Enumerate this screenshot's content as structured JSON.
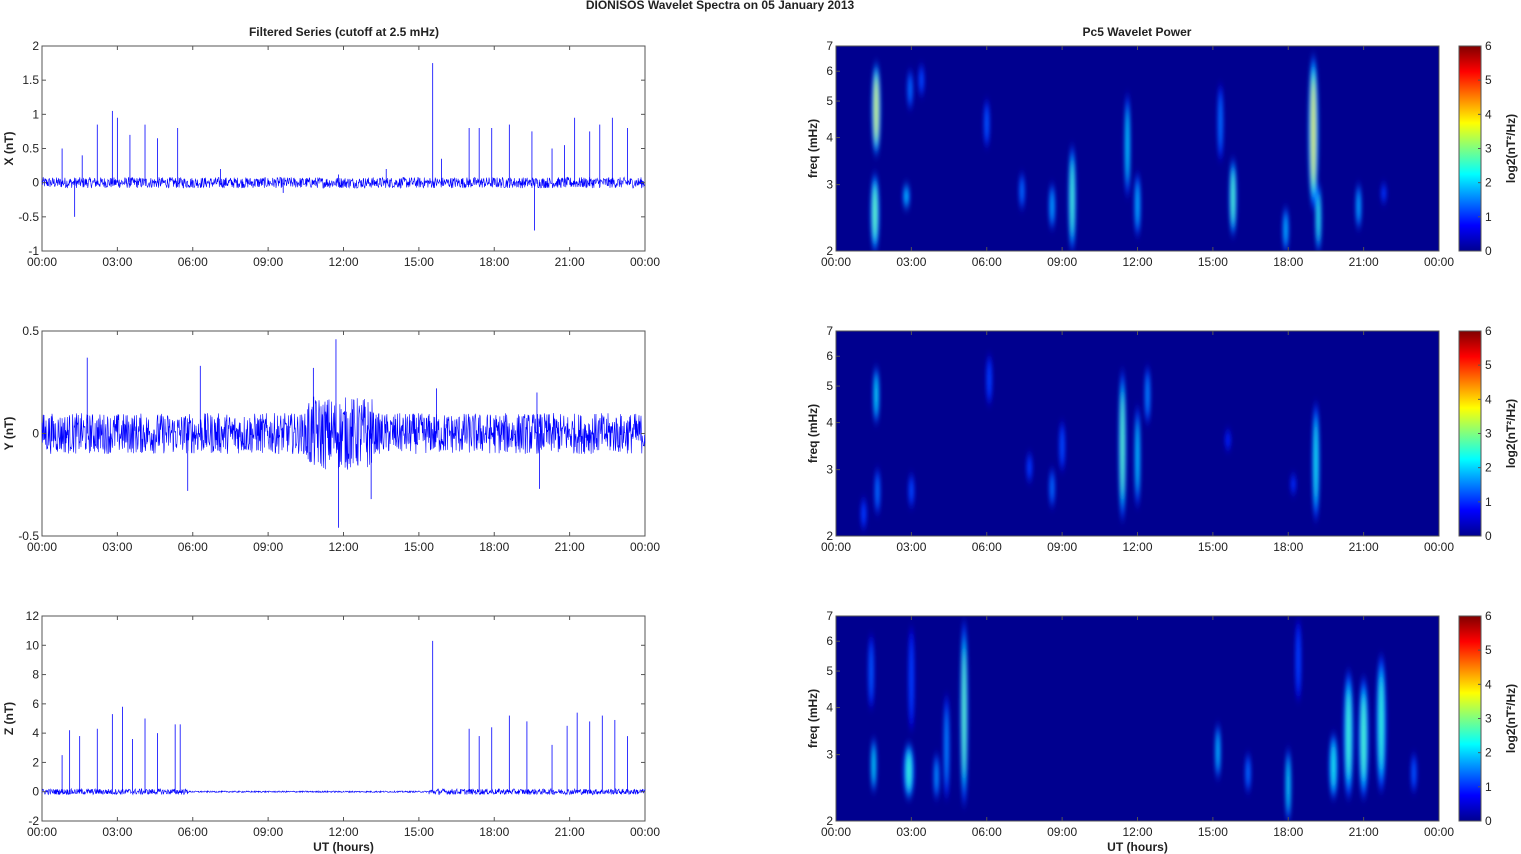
{
  "figure": {
    "title": "DIONISOS Wavelet Spectra on 05 January   2013",
    "left_title": "Filtered Series (cutoff at 2.5 mHz)",
    "right_title": "Pc5 Wavelet Power"
  },
  "colors": {
    "line": "#0000ff",
    "spectrum_background": "#00008f",
    "frame": "#555555"
  },
  "chart_data": [
    {
      "type": "line",
      "name": "X component",
      "xlabel": "",
      "ylabel": "X (nT)",
      "xlim": [
        0,
        24
      ],
      "ylim": [
        -1,
        2
      ],
      "x_tick_labels": [
        "00:00",
        "03:00",
        "06:00",
        "09:00",
        "12:00",
        "15:00",
        "18:00",
        "21:00",
        "00:00"
      ],
      "y_ticks": [
        -1,
        -0.5,
        0,
        0.5,
        1,
        1.5,
        2
      ],
      "noise_amplitude": 0.08,
      "spikes": [
        [
          0.8,
          0.5
        ],
        [
          1.3,
          -0.5
        ],
        [
          1.6,
          0.4
        ],
        [
          2.2,
          0.85
        ],
        [
          2.8,
          1.05
        ],
        [
          3.0,
          0.95
        ],
        [
          3.5,
          0.7
        ],
        [
          4.1,
          0.85
        ],
        [
          4.6,
          0.65
        ],
        [
          5.4,
          0.8
        ],
        [
          7.1,
          0.2
        ],
        [
          9.6,
          -0.15
        ],
        [
          11.8,
          0.12
        ],
        [
          13.7,
          0.2
        ],
        [
          15.55,
          1.75
        ],
        [
          15.9,
          0.35
        ],
        [
          17.0,
          0.8
        ],
        [
          17.4,
          0.8
        ],
        [
          17.9,
          0.8
        ],
        [
          18.6,
          0.85
        ],
        [
          19.5,
          0.75
        ],
        [
          19.6,
          -0.7
        ],
        [
          20.3,
          0.5
        ],
        [
          20.8,
          0.55
        ],
        [
          21.2,
          0.95
        ],
        [
          21.8,
          0.75
        ],
        [
          22.2,
          0.85
        ],
        [
          22.7,
          0.95
        ],
        [
          23.3,
          0.8
        ]
      ]
    },
    {
      "type": "line",
      "name": "Y component",
      "xlabel": "",
      "ylabel": "Y (nT)",
      "xlim": [
        0,
        24
      ],
      "ylim": [
        -0.5,
        0.5
      ],
      "x_tick_labels": [
        "00:00",
        "03:00",
        "06:00",
        "09:00",
        "12:00",
        "15:00",
        "18:00",
        "21:00",
        "00:00"
      ],
      "y_ticks": [
        -0.5,
        0,
        0.5
      ],
      "noise_amplitude": 0.1,
      "spikes": [
        [
          1.8,
          0.37
        ],
        [
          5.8,
          -0.28
        ],
        [
          6.3,
          0.33
        ],
        [
          10.8,
          0.32
        ],
        [
          11.7,
          0.46
        ],
        [
          11.8,
          -0.46
        ],
        [
          13.1,
          -0.32
        ],
        [
          15.7,
          0.22
        ],
        [
          19.7,
          0.2
        ],
        [
          19.8,
          -0.27
        ]
      ]
    },
    {
      "type": "line",
      "name": "Z component",
      "xlabel": "UT (hours)",
      "ylabel": "Z (nT)",
      "xlim": [
        0,
        24
      ],
      "ylim": [
        -2,
        12
      ],
      "x_tick_labels": [
        "00:00",
        "03:00",
        "06:00",
        "09:00",
        "12:00",
        "15:00",
        "18:00",
        "21:00",
        "00:00"
      ],
      "y_ticks": [
        -2,
        0,
        2,
        4,
        6,
        8,
        10,
        12
      ],
      "noise_amplitude": 0.2,
      "spikes": [
        [
          0.8,
          2.5
        ],
        [
          1.1,
          4.2
        ],
        [
          1.5,
          3.8
        ],
        [
          2.2,
          4.3
        ],
        [
          2.8,
          5.3
        ],
        [
          3.2,
          5.8
        ],
        [
          3.6,
          3.6
        ],
        [
          4.1,
          5.0
        ],
        [
          4.6,
          4.0
        ],
        [
          5.3,
          4.6
        ],
        [
          5.5,
          4.6
        ],
        [
          15.55,
          10.3
        ],
        [
          17.0,
          4.3
        ],
        [
          17.4,
          3.8
        ],
        [
          17.9,
          4.4
        ],
        [
          18.6,
          5.2
        ],
        [
          19.3,
          4.8
        ],
        [
          20.3,
          3.2
        ],
        [
          20.9,
          4.5
        ],
        [
          21.3,
          5.4
        ],
        [
          21.8,
          4.8
        ],
        [
          22.3,
          5.2
        ],
        [
          22.8,
          4.9
        ],
        [
          23.3,
          3.8
        ]
      ]
    },
    {
      "type": "heatmap",
      "name": "X wavelet power",
      "xlabel": "",
      "ylabel": "freq (mHz)",
      "xlim": [
        0,
        24
      ],
      "ylim": [
        2,
        7
      ],
      "yscale": "log",
      "x_tick_labels": [
        "00:00",
        "03:00",
        "06:00",
        "09:00",
        "12:00",
        "15:00",
        "18:00",
        "21:00",
        "00:00"
      ],
      "y_ticks": [
        2,
        3,
        4,
        5,
        6,
        7
      ],
      "colorbar_label": "log2(nT²/Hz)",
      "colorbar_ticks": [
        0,
        1,
        2,
        3,
        4,
        5,
        6
      ],
      "clim": [
        0,
        6
      ],
      "blobs": [
        {
          "t": 1.6,
          "f1": 3.6,
          "f2": 6.3,
          "w": 0.18,
          "power": 3.6
        },
        {
          "t": 1.55,
          "f1": 2.0,
          "f2": 3.2,
          "w": 0.18,
          "power": 2.6
        },
        {
          "t": 2.8,
          "f1": 2.6,
          "f2": 3.0,
          "w": 0.15,
          "power": 1.6
        },
        {
          "t": 2.95,
          "f1": 4.8,
          "f2": 6.0,
          "w": 0.12,
          "power": 1.0
        },
        {
          "t": 3.4,
          "f1": 5.2,
          "f2": 6.2,
          "w": 0.1,
          "power": 0.7
        },
        {
          "t": 6.0,
          "f1": 3.8,
          "f2": 5.0,
          "w": 0.07,
          "power": 0.8
        },
        {
          "t": 7.4,
          "f1": 2.6,
          "f2": 3.2,
          "w": 0.12,
          "power": 1.0
        },
        {
          "t": 8.6,
          "f1": 2.3,
          "f2": 3.0,
          "w": 0.13,
          "power": 1.4
        },
        {
          "t": 9.4,
          "f1": 2.0,
          "f2": 3.8,
          "w": 0.15,
          "power": 2.4
        },
        {
          "t": 11.6,
          "f1": 2.8,
          "f2": 5.2,
          "w": 0.12,
          "power": 1.8
        },
        {
          "t": 12.0,
          "f1": 2.2,
          "f2": 3.2,
          "w": 0.13,
          "power": 1.5
        },
        {
          "t": 15.3,
          "f1": 3.5,
          "f2": 5.5,
          "w": 0.1,
          "power": 1.0
        },
        {
          "t": 15.8,
          "f1": 2.2,
          "f2": 3.5,
          "w": 0.15,
          "power": 2.5
        },
        {
          "t": 17.9,
          "f1": 2.0,
          "f2": 2.6,
          "w": 0.13,
          "power": 1.5
        },
        {
          "t": 19.0,
          "f1": 2.6,
          "f2": 6.6,
          "w": 0.2,
          "power": 3.8
        },
        {
          "t": 19.2,
          "f1": 2.0,
          "f2": 3.0,
          "w": 0.13,
          "power": 2.2
        },
        {
          "t": 20.8,
          "f1": 2.3,
          "f2": 3.0,
          "w": 0.12,
          "power": 1.5
        },
        {
          "t": 21.8,
          "f1": 2.7,
          "f2": 3.0,
          "w": 0.05,
          "power": 0.6
        }
      ]
    },
    {
      "type": "heatmap",
      "name": "Y wavelet power",
      "xlabel": "",
      "ylabel": "freq (mHz)",
      "xlim": [
        0,
        24
      ],
      "ylim": [
        2,
        7
      ],
      "yscale": "log",
      "x_tick_labels": [
        "00:00",
        "03:00",
        "06:00",
        "09:00",
        "12:00",
        "15:00",
        "18:00",
        "21:00",
        "00:00"
      ],
      "y_ticks": [
        2,
        3,
        4,
        5,
        6,
        7
      ],
      "colorbar_label": "log2(nT²/Hz)",
      "colorbar_ticks": [
        0,
        1,
        2,
        3,
        4,
        5,
        6
      ],
      "clim": [
        0,
        6
      ],
      "blobs": [
        {
          "t": 1.6,
          "f1": 4.0,
          "f2": 5.6,
          "w": 0.13,
          "power": 1.9
        },
        {
          "t": 1.65,
          "f1": 2.3,
          "f2": 3.0,
          "w": 0.1,
          "power": 1.0
        },
        {
          "t": 1.1,
          "f1": 2.1,
          "f2": 2.5,
          "w": 0.07,
          "power": 0.6
        },
        {
          "t": 3.0,
          "f1": 2.4,
          "f2": 2.9,
          "w": 0.08,
          "power": 0.7
        },
        {
          "t": 6.1,
          "f1": 4.5,
          "f2": 6.0,
          "w": 0.07,
          "power": 0.6
        },
        {
          "t": 7.7,
          "f1": 2.8,
          "f2": 3.3,
          "w": 0.07,
          "power": 0.6
        },
        {
          "t": 8.6,
          "f1": 2.4,
          "f2": 3.0,
          "w": 0.1,
          "power": 1.0
        },
        {
          "t": 9.0,
          "f1": 3.0,
          "f2": 4.0,
          "w": 0.08,
          "power": 0.7
        },
        {
          "t": 11.4,
          "f1": 2.2,
          "f2": 5.5,
          "w": 0.15,
          "power": 2.6
        },
        {
          "t": 12.0,
          "f1": 2.4,
          "f2": 4.4,
          "w": 0.12,
          "power": 1.7
        },
        {
          "t": 12.4,
          "f1": 4.0,
          "f2": 5.6,
          "w": 0.1,
          "power": 1.2
        },
        {
          "t": 19.1,
          "f1": 2.2,
          "f2": 4.5,
          "w": 0.15,
          "power": 2.0
        },
        {
          "t": 18.2,
          "f1": 2.6,
          "f2": 2.9,
          "w": 0.06,
          "power": 0.5
        },
        {
          "t": 15.6,
          "f1": 3.4,
          "f2": 3.8,
          "w": 0.05,
          "power": 0.4
        }
      ]
    },
    {
      "type": "heatmap",
      "name": "Z wavelet power",
      "xlabel": "UT (hours)",
      "ylabel": "freq (mHz)",
      "xlim": [
        0,
        24
      ],
      "ylim": [
        2,
        7
      ],
      "yscale": "log",
      "x_tick_labels": [
        "00:00",
        "03:00",
        "06:00",
        "09:00",
        "12:00",
        "15:00",
        "18:00",
        "21:00",
        "00:00"
      ],
      "y_ticks": [
        2,
        3,
        4,
        5,
        6,
        7
      ],
      "colorbar_label": "log2(nT²/Hz)",
      "colorbar_ticks": [
        0,
        1,
        2,
        3,
        4,
        5,
        6
      ],
      "clim": [
        0,
        6
      ],
      "blobs": [
        {
          "t": 1.5,
          "f1": 2.4,
          "f2": 3.3,
          "w": 0.12,
          "power": 1.9
        },
        {
          "t": 1.4,
          "f1": 4.0,
          "f2": 6.2,
          "w": 0.07,
          "power": 0.8
        },
        {
          "t": 2.9,
          "f1": 2.3,
          "f2": 3.2,
          "w": 0.22,
          "power": 2.2
        },
        {
          "t": 3.0,
          "f1": 3.5,
          "f2": 6.5,
          "w": 0.06,
          "power": 0.6
        },
        {
          "t": 4.0,
          "f1": 2.3,
          "f2": 3.0,
          "w": 0.1,
          "power": 1.3
        },
        {
          "t": 4.4,
          "f1": 2.3,
          "f2": 4.3,
          "w": 0.09,
          "power": 1.2
        },
        {
          "t": 5.1,
          "f1": 2.2,
          "f2": 6.8,
          "w": 0.15,
          "power": 2.6
        },
        {
          "t": 15.2,
          "f1": 2.6,
          "f2": 3.6,
          "w": 0.1,
          "power": 1.6
        },
        {
          "t": 16.4,
          "f1": 2.4,
          "f2": 3.0,
          "w": 0.09,
          "power": 1.0
        },
        {
          "t": 18.0,
          "f1": 2.0,
          "f2": 3.1,
          "w": 0.12,
          "power": 1.9
        },
        {
          "t": 18.4,
          "f1": 4.2,
          "f2": 6.8,
          "w": 0.06,
          "power": 0.6
        },
        {
          "t": 19.8,
          "f1": 2.3,
          "f2": 3.4,
          "w": 0.18,
          "power": 2.0
        },
        {
          "t": 20.4,
          "f1": 2.3,
          "f2": 5.0,
          "w": 0.2,
          "power": 2.3
        },
        {
          "t": 21.0,
          "f1": 2.3,
          "f2": 4.8,
          "w": 0.2,
          "power": 2.4
        },
        {
          "t": 21.7,
          "f1": 2.4,
          "f2": 5.5,
          "w": 0.2,
          "power": 2.2
        },
        {
          "t": 23.0,
          "f1": 2.4,
          "f2": 3.0,
          "w": 0.08,
          "power": 0.8
        }
      ]
    }
  ]
}
